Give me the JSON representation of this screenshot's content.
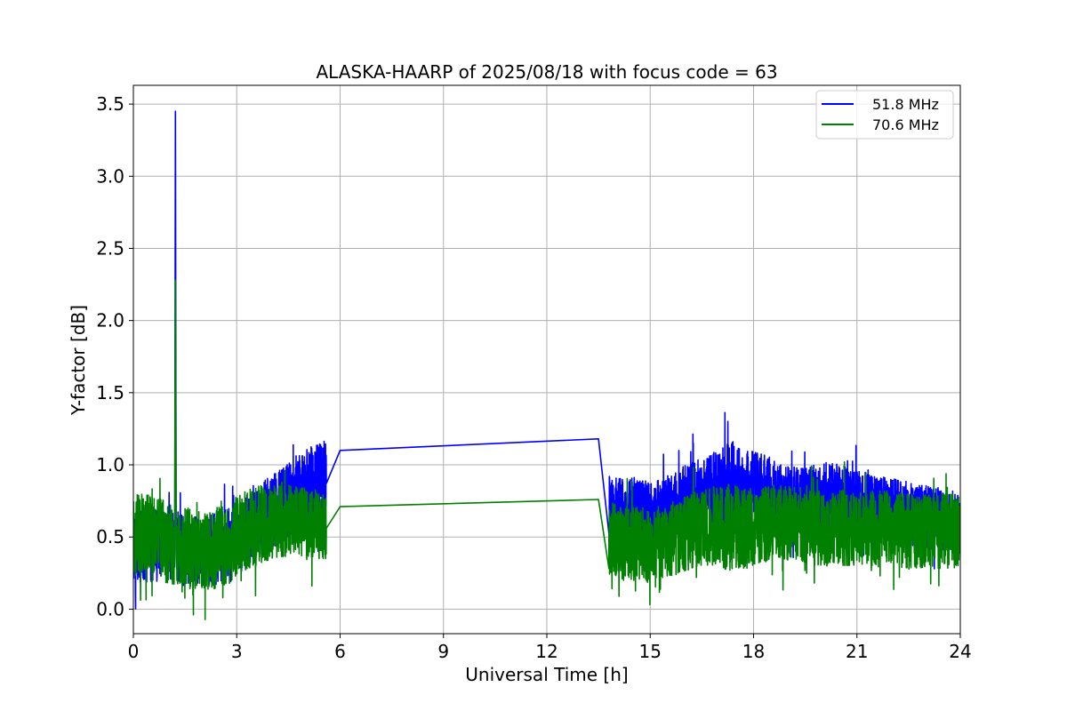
{
  "chart_data": {
    "type": "line",
    "title": "ALASKA-HAARP of 2025/08/18 with focus code = 63",
    "xlabel": "Universal Time [h]",
    "ylabel": "Y-factor [dB]",
    "xlim": [
      0,
      24
    ],
    "ylim": [
      -0.17,
      3.63
    ],
    "xticks": [
      0,
      3,
      6,
      9,
      12,
      15,
      18,
      21,
      24
    ],
    "yticks": [
      0.0,
      0.5,
      1.0,
      1.5,
      2.0,
      2.5,
      3.0,
      3.5
    ],
    "xtick_labels": [
      "0",
      "3",
      "6",
      "9",
      "12",
      "15",
      "18",
      "21",
      "24"
    ],
    "ytick_labels": [
      "0.0",
      "0.5",
      "1.0",
      "1.5",
      "2.0",
      "2.5",
      "3.0",
      "3.5"
    ],
    "grid": true,
    "legend_position": "top-right",
    "series": [
      {
        "name": "51.8 MHz",
        "color": "#0000ff",
        "x": [
          0.0,
          0.3,
          0.6,
          1.0,
          1.2,
          1.22,
          1.24,
          1.3,
          1.6,
          2.0,
          2.4,
          2.8,
          3.0,
          3.3,
          3.6,
          4.0,
          4.3,
          4.6,
          5.0,
          5.3,
          5.6,
          6.0,
          13.5,
          13.8,
          14.2,
          14.6,
          15.0,
          15.4,
          15.8,
          16.2,
          16.6,
          17.0,
          17.4,
          17.8,
          18.2,
          18.6,
          19.0,
          19.4,
          19.8,
          20.2,
          20.6,
          21.0,
          21.4,
          21.8,
          22.2,
          22.6,
          23.0,
          23.4,
          23.8,
          24.0
        ],
        "y": [
          0.45,
          0.42,
          0.44,
          0.43,
          0.42,
          3.45,
          0.5,
          0.42,
          0.4,
          0.38,
          0.42,
          0.45,
          0.48,
          0.55,
          0.6,
          0.68,
          0.72,
          0.78,
          0.82,
          0.85,
          0.87,
          1.1,
          1.18,
          0.72,
          0.68,
          0.7,
          0.66,
          0.7,
          0.73,
          0.76,
          0.8,
          0.82,
          0.84,
          0.82,
          0.8,
          0.78,
          0.75,
          0.74,
          0.76,
          0.78,
          0.76,
          0.74,
          0.72,
          0.7,
          0.68,
          0.66,
          0.64,
          0.62,
          0.6,
          0.6
        ],
        "band": [
          0.25,
          0.25,
          0.25,
          0.25,
          0.25,
          0.25,
          0.25,
          0.25,
          0.25,
          0.25,
          0.25,
          0.25,
          0.25,
          0.25,
          0.25,
          0.27,
          0.27,
          0.28,
          0.28,
          0.3,
          0.3,
          0,
          0,
          0.22,
          0.22,
          0.22,
          0.22,
          0.22,
          0.24,
          0.26,
          0.28,
          0.3,
          0.32,
          0.3,
          0.28,
          0.26,
          0.24,
          0.24,
          0.24,
          0.24,
          0.24,
          0.22,
          0.22,
          0.22,
          0.22,
          0.22,
          0.22,
          0.22,
          0.22,
          0.22
        ]
      },
      {
        "name": "70.6 MHz",
        "color": "#008000",
        "x": [
          0.0,
          0.3,
          0.6,
          1.0,
          1.2,
          1.22,
          1.24,
          1.3,
          1.6,
          2.0,
          2.4,
          2.8,
          3.0,
          3.3,
          3.6,
          4.0,
          4.3,
          4.6,
          5.0,
          5.3,
          5.6,
          6.0,
          13.5,
          13.8,
          14.2,
          14.6,
          15.0,
          15.4,
          15.8,
          16.2,
          16.6,
          17.0,
          17.4,
          17.8,
          18.2,
          18.6,
          19.0,
          19.4,
          19.8,
          20.2,
          20.6,
          21.0,
          21.4,
          21.8,
          22.2,
          22.6,
          23.0,
          23.4,
          23.8,
          24.0
        ],
        "y": [
          0.5,
          0.55,
          0.52,
          0.46,
          0.44,
          2.28,
          0.48,
          0.44,
          0.42,
          0.4,
          0.42,
          0.46,
          0.5,
          0.55,
          0.58,
          0.6,
          0.62,
          0.62,
          0.6,
          0.58,
          0.56,
          0.71,
          0.76,
          0.5,
          0.46,
          0.45,
          0.44,
          0.46,
          0.5,
          0.54,
          0.58,
          0.58,
          0.56,
          0.56,
          0.58,
          0.6,
          0.6,
          0.58,
          0.56,
          0.56,
          0.56,
          0.56,
          0.56,
          0.56,
          0.55,
          0.54,
          0.54,
          0.54,
          0.54,
          0.54
        ],
        "band": [
          0.28,
          0.28,
          0.28,
          0.28,
          0.28,
          0.28,
          0.28,
          0.28,
          0.28,
          0.28,
          0.28,
          0.28,
          0.28,
          0.28,
          0.28,
          0.26,
          0.26,
          0.26,
          0.24,
          0.24,
          0.24,
          0,
          0,
          0.26,
          0.26,
          0.26,
          0.26,
          0.26,
          0.26,
          0.26,
          0.28,
          0.3,
          0.3,
          0.28,
          0.26,
          0.26,
          0.26,
          0.26,
          0.26,
          0.26,
          0.26,
          0.26,
          0.26,
          0.26,
          0.26,
          0.26,
          0.26,
          0.26,
          0.26,
          0.26
        ]
      }
    ]
  }
}
